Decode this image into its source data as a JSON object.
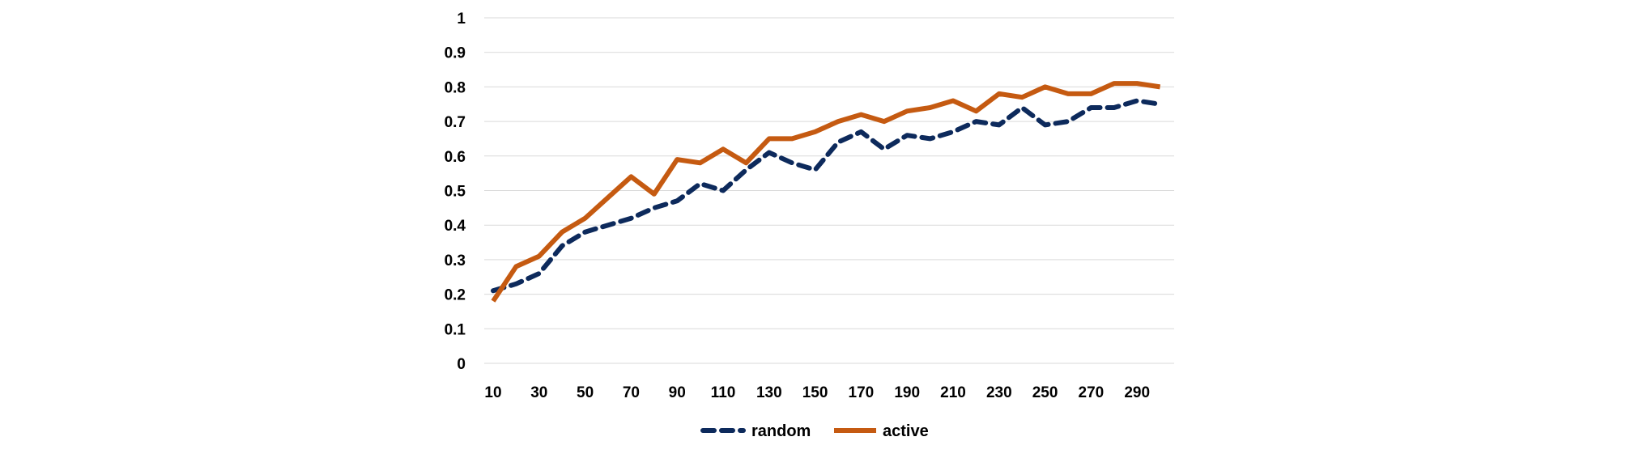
{
  "chart_data": {
    "type": "line",
    "title": "",
    "xlabel": "",
    "ylabel": "",
    "x": [
      10,
      20,
      30,
      40,
      50,
      60,
      70,
      80,
      90,
      100,
      110,
      120,
      130,
      140,
      150,
      160,
      170,
      180,
      190,
      200,
      210,
      220,
      230,
      240,
      250,
      260,
      270,
      280,
      290,
      300
    ],
    "x_tick_labels": [
      "10",
      "30",
      "50",
      "70",
      "90",
      "110",
      "130",
      "150",
      "170",
      "190",
      "210",
      "230",
      "250",
      "270",
      "290"
    ],
    "y_tick_labels": [
      "0",
      "0.1",
      "0.2",
      "0.3",
      "0.4",
      "0.5",
      "0.6",
      "0.7",
      "0.8",
      "0.9",
      "1"
    ],
    "ylim": [
      0,
      1
    ],
    "grid": "horizontal",
    "legend_position": "bottom",
    "series": [
      {
        "name": "random",
        "color": "#0d2a5c",
        "style": "dashed",
        "values": [
          0.21,
          0.23,
          0.26,
          0.34,
          0.38,
          0.4,
          0.42,
          0.45,
          0.47,
          0.52,
          0.5,
          0.56,
          0.61,
          0.58,
          0.56,
          0.64,
          0.67,
          0.62,
          0.66,
          0.65,
          0.67,
          0.7,
          0.69,
          0.74,
          0.69,
          0.7,
          0.74,
          0.74,
          0.76,
          0.75
        ]
      },
      {
        "name": "active",
        "color": "#c55a11",
        "style": "solid",
        "values": [
          0.18,
          0.28,
          0.31,
          0.38,
          0.42,
          0.48,
          0.54,
          0.49,
          0.59,
          0.58,
          0.62,
          0.58,
          0.65,
          0.65,
          0.67,
          0.7,
          0.72,
          0.7,
          0.73,
          0.74,
          0.76,
          0.73,
          0.78,
          0.77,
          0.8,
          0.78,
          0.78,
          0.81,
          0.81,
          0.8
        ]
      }
    ]
  }
}
